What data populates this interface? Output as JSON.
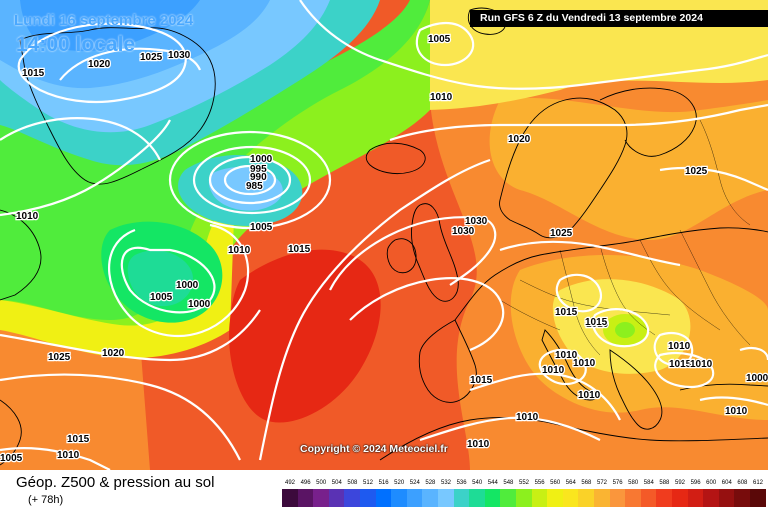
{
  "header": {
    "valid_date": "Lundi 16 septembre 2024",
    "valid_time": "14:00 locale",
    "run_info": "Run GFS 6 Z du Vendredi 13 septembre 2024"
  },
  "copyright": "Copyright © 2024 Meteociel.fr",
  "footer": {
    "title": "Géop. Z500 & pression au sol",
    "lead": "(+ 78h)"
  },
  "pressure_labels": [
    {
      "text": "1025"
    },
    {
      "text": "1030"
    },
    {
      "text": "1020"
    },
    {
      "text": "1015"
    },
    {
      "text": "1005"
    },
    {
      "text": "1010"
    },
    {
      "text": "1020"
    },
    {
      "text": "1000"
    },
    {
      "text": "995"
    },
    {
      "text": "990"
    },
    {
      "text": "985"
    },
    {
      "text": "1005"
    },
    {
      "text": "1010"
    },
    {
      "text": "1015"
    },
    {
      "text": "1010"
    },
    {
      "text": "1030"
    },
    {
      "text": "1030"
    },
    {
      "text": "1025"
    },
    {
      "text": "1025"
    },
    {
      "text": "1000"
    },
    {
      "text": "1005"
    },
    {
      "text": "1000"
    },
    {
      "text": "1025"
    },
    {
      "text": "1020"
    },
    {
      "text": "1015"
    },
    {
      "text": "1015"
    },
    {
      "text": "1010"
    },
    {
      "text": "1010"
    },
    {
      "text": "1010"
    },
    {
      "text": "1010"
    },
    {
      "text": "1010"
    },
    {
      "text": "1010"
    },
    {
      "text": "1000"
    },
    {
      "text": "1015"
    },
    {
      "text": "1010"
    },
    {
      "text": "1005"
    },
    {
      "text": "1015"
    },
    {
      "text": "1010"
    },
    {
      "text": "1015"
    },
    {
      "text": "1010"
    },
    {
      "text": "1010"
    },
    {
      "text": "1010"
    }
  ],
  "scale": {
    "ticks": [
      "492",
      "496",
      "500",
      "504",
      "508",
      "512",
      "516",
      "520",
      "524",
      "528",
      "532",
      "536",
      "540",
      "544",
      "548",
      "552",
      "556",
      "560",
      "564",
      "568",
      "572",
      "576",
      "580",
      "584",
      "588",
      "592",
      "596",
      "600",
      "604",
      "608",
      "612"
    ],
    "colors": [
      "#3c0a3c",
      "#5a1464",
      "#78208c",
      "#5a32b4",
      "#3c46dc",
      "#1e5af0",
      "#0070ff",
      "#1e8cff",
      "#3ca0ff",
      "#5ab4ff",
      "#78c8ff",
      "#3cd2c8",
      "#1edc96",
      "#14e664",
      "#50ec3c",
      "#8cf01e",
      "#c8f014",
      "#f0f014",
      "#fae61e",
      "#fad228",
      "#fab432",
      "#fa963c",
      "#f87832",
      "#f45a28",
      "#f03c1e",
      "#e62814",
      "#d21e14",
      "#b41414",
      "#961010",
      "#780c0c",
      "#5a0808"
    ]
  }
}
